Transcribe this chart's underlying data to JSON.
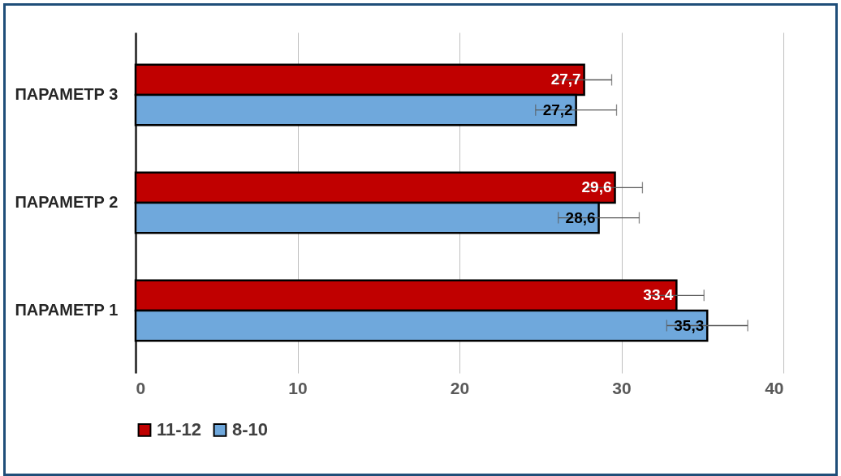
{
  "chart_data": {
    "type": "bar",
    "orientation": "horizontal",
    "categories": [
      "ПАРАМЕТР  3",
      "ПАРАМЕТР  2",
      "ПАРАМЕТР  1"
    ],
    "series": [
      {
        "name": "11-12",
        "color": "#c00000",
        "values": [
          27.7,
          29.6,
          33.4
        ],
        "errors": [
          1.7,
          1.7,
          1.7
        ],
        "value_labels": [
          "27,7",
          "29,6",
          "33.4"
        ]
      },
      {
        "name": "8-10",
        "color": "#6fa8dc",
        "values": [
          27.2,
          28.6,
          35.3
        ],
        "errors": [
          2.5,
          2.5,
          2.5
        ],
        "value_labels": [
          "27,2",
          "28,6",
          "35,3"
        ]
      }
    ],
    "xlim": [
      0,
      40
    ],
    "xticks": [
      0,
      10,
      20,
      30,
      40
    ],
    "grid": "x",
    "legend": "bottom"
  }
}
